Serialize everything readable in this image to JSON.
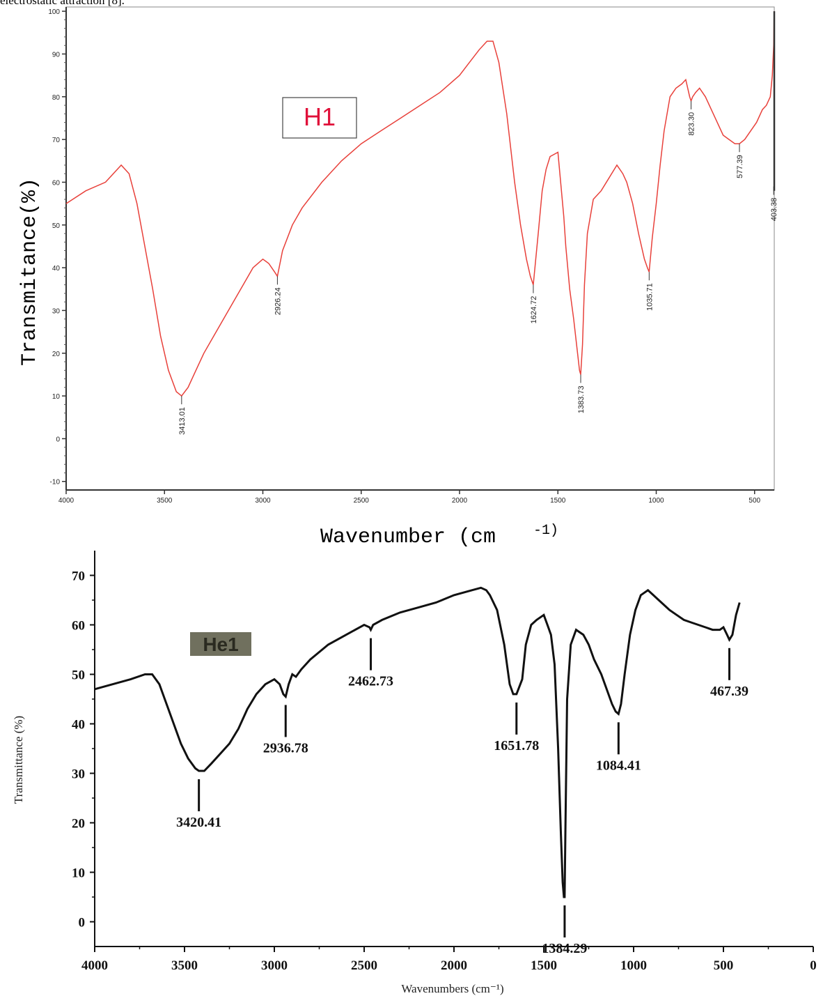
{
  "top_text": "electrostatic attraction [8].",
  "chart_data": [
    {
      "type": "line",
      "tag": "H1",
      "xlabel": "Wavenumber (cm",
      "xlabel_sup": "-1)",
      "ylabel": "Transmitance(%)",
      "xlim": [
        4000,
        400
      ],
      "ylim": [
        -12,
        101
      ],
      "x_ticks": [
        "4000",
        "3500",
        "3000",
        "2500",
        "2000",
        "1500",
        "1000",
        "500"
      ],
      "y_ticks": [
        "100",
        "90",
        "80",
        "70",
        "60",
        "50",
        "40",
        "30",
        "20",
        "10",
        "0",
        "-10"
      ],
      "color": "#e8403a",
      "peaks": [
        {
          "label": "3413.01",
          "x": 3413,
          "y": 10
        },
        {
          "label": "2926.24",
          "x": 2926,
          "y": 38
        },
        {
          "label": "1624.72",
          "x": 1625,
          "y": 36
        },
        {
          "label": "1383.73",
          "x": 1384,
          "y": 15
        },
        {
          "label": "1035.71",
          "x": 1036,
          "y": 39
        },
        {
          "label": "823.30",
          "x": 823,
          "y": 79
        },
        {
          "label": "577.39",
          "x": 577,
          "y": 69
        },
        {
          "label": "403.38",
          "x": 403,
          "y": 59
        }
      ],
      "series": [
        {
          "x": [
            4000,
            3900,
            3800,
            3720,
            3680,
            3640,
            3600,
            3560,
            3520,
            3480,
            3440,
            3413,
            3380,
            3340,
            3300,
            3250,
            3200,
            3150,
            3100,
            3050,
            3000,
            2970,
            2940,
            2926,
            2900,
            2850,
            2800,
            2700,
            2600,
            2500,
            2400,
            2300,
            2200,
            2100,
            2000,
            1950,
            1900,
            1860,
            1830,
            1800,
            1760,
            1720,
            1690,
            1660,
            1640,
            1625,
            1600,
            1580,
            1560,
            1540,
            1500,
            1470,
            1460,
            1440,
            1420,
            1400,
            1390,
            1384,
            1375,
            1365,
            1350,
            1320,
            1280,
            1240,
            1200,
            1170,
            1150,
            1120,
            1090,
            1060,
            1045,
            1036,
            1020,
            1000,
            980,
            960,
            930,
            900,
            870,
            850,
            840,
            830,
            823,
            815,
            800,
            780,
            750,
            720,
            690,
            660,
            630,
            600,
            577,
            550,
            520,
            490,
            460,
            440,
            420,
            410,
            403,
            401,
            400
          ],
          "y": [
            55,
            58,
            60,
            64,
            62,
            55,
            45,
            35,
            24,
            16,
            11,
            10,
            12,
            16,
            20,
            24,
            28,
            32,
            36,
            40,
            42,
            41,
            39,
            38,
            44,
            50,
            54,
            60,
            65,
            69,
            72,
            75,
            78,
            81,
            85,
            88,
            91,
            93,
            93,
            88,
            76,
            60,
            50,
            42,
            38,
            36,
            48,
            58,
            63,
            66,
            67,
            52,
            45,
            35,
            28,
            20,
            16,
            15,
            22,
            36,
            48,
            56,
            58,
            61,
            64,
            62,
            60,
            55,
            48,
            42,
            40,
            39,
            47,
            55,
            64,
            72,
            80,
            82,
            83,
            84,
            82,
            80,
            79,
            80,
            81,
            82,
            80,
            77,
            74,
            71,
            70,
            69,
            69,
            70,
            72,
            74,
            77,
            78,
            80,
            85,
            92,
            98,
            100
          ]
        }
      ]
    },
    {
      "type": "line",
      "tag": "He1",
      "xlabel": "Wavenumbers (cm⁻¹)",
      "ylabel": "Transmittance (%)",
      "xlim": [
        4000,
        0
      ],
      "ylim": [
        -5,
        75
      ],
      "x_ticks": [
        "4000",
        "3500",
        "3000",
        "2500",
        "2000",
        "1500",
        "1000",
        "500",
        "0"
      ],
      "y_ticks": [
        "70",
        "60",
        "50",
        "40",
        "30",
        "20",
        "10",
        "0"
      ],
      "color": "#111111",
      "peaks": [
        {
          "label": "3420.41",
          "x": 3420,
          "y": 30.5
        },
        {
          "label": "2936.78",
          "x": 2937,
          "y": 45.5
        },
        {
          "label": "2462.73",
          "x": 2463,
          "y": 59
        },
        {
          "label": "1651.78",
          "x": 1652,
          "y": 46
        },
        {
          "label": "1384.29",
          "x": 1384,
          "y": 5
        },
        {
          "label": "1084.41",
          "x": 1084,
          "y": 42
        },
        {
          "label": "467.39",
          "x": 467,
          "y": 57
        }
      ],
      "series": [
        {
          "x": [
            4000,
            3900,
            3800,
            3720,
            3680,
            3640,
            3600,
            3560,
            3520,
            3480,
            3440,
            3420,
            3390,
            3350,
            3300,
            3250,
            3200,
            3150,
            3100,
            3050,
            3000,
            2970,
            2950,
            2937,
            2920,
            2900,
            2880,
            2850,
            2800,
            2700,
            2600,
            2500,
            2470,
            2463,
            2450,
            2400,
            2300,
            2200,
            2100,
            2000,
            1900,
            1850,
            1820,
            1800,
            1760,
            1720,
            1690,
            1670,
            1652,
            1620,
            1600,
            1570,
            1540,
            1500,
            1480,
            1460,
            1440,
            1420,
            1405,
            1395,
            1388,
            1384,
            1380,
            1370,
            1350,
            1320,
            1280,
            1250,
            1220,
            1180,
            1150,
            1120,
            1100,
            1084,
            1070,
            1050,
            1020,
            990,
            960,
            920,
            890,
            860,
            830,
            800,
            760,
            720,
            680,
            640,
            600,
            560,
            520,
            500,
            480,
            467,
            450,
            430,
            410
          ],
          "y": [
            47,
            48,
            49,
            50,
            50,
            48,
            44,
            40,
            36,
            33,
            31,
            30.5,
            30.5,
            32,
            34,
            36,
            39,
            43,
            46,
            48,
            49,
            48,
            46,
            45.5,
            48,
            50,
            49.5,
            51,
            53,
            56,
            58,
            60,
            59.5,
            59,
            60,
            61,
            62.5,
            63.5,
            64.5,
            66,
            67,
            67.5,
            67,
            66,
            63,
            56,
            48,
            46,
            46,
            49,
            56,
            60,
            61,
            62,
            60,
            58,
            52,
            35,
            18,
            8,
            5,
            5,
            18,
            45,
            56,
            59,
            58,
            56,
            53,
            50,
            47,
            44,
            42.5,
            42,
            44,
            50,
            58,
            63,
            66,
            67,
            66,
            65,
            64,
            63,
            62,
            61,
            60.5,
            60,
            59.5,
            59,
            59,
            59.5,
            58,
            57,
            58,
            62,
            64.5
          ]
        }
      ]
    }
  ]
}
